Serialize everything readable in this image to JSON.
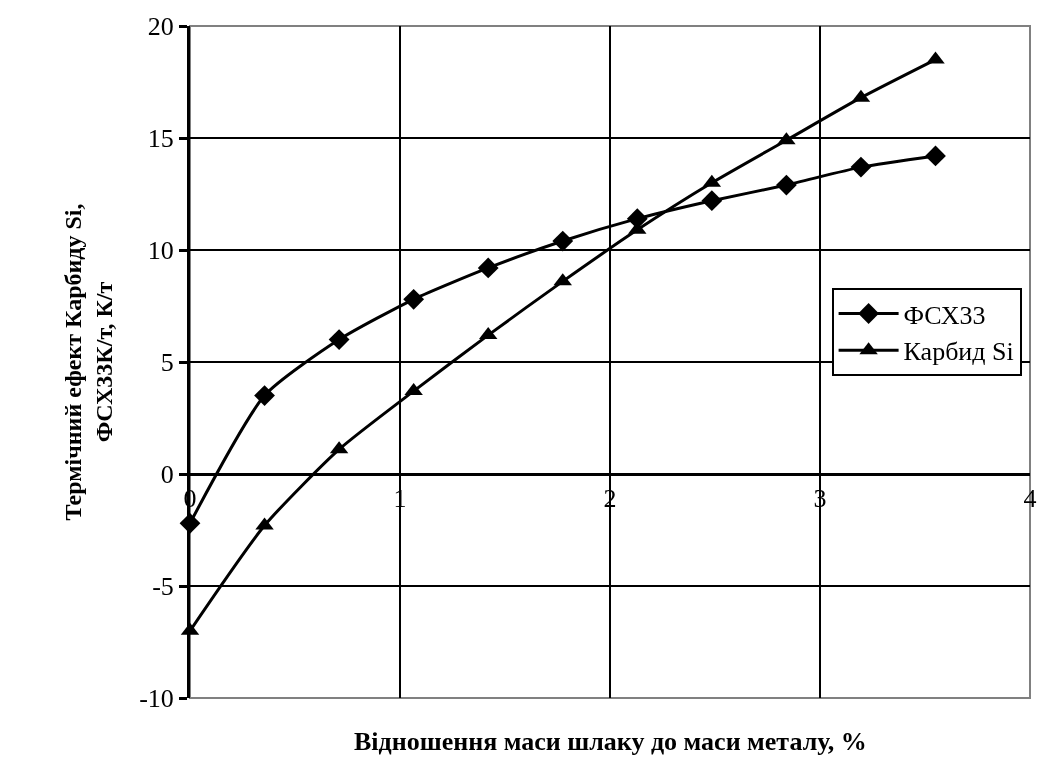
{
  "chart_data": {
    "type": "line",
    "xlabel": "Відношення маси шлаку до маси металу, %",
    "ylabel": "Термічний ефект Карбиду Si,\nФСХ33К/т, К/т",
    "x": [
      0,
      0.355,
      0.71,
      1.065,
      1.42,
      1.775,
      2.13,
      2.485,
      2.84,
      3.195,
      3.55
    ],
    "series": [
      {
        "name": "ФСХ33",
        "color": "#000000",
        "marker": "diamond",
        "values": [
          -2.2,
          3.5,
          6.0,
          7.8,
          9.2,
          10.4,
          11.4,
          12.2,
          12.9,
          13.7,
          14.2
        ]
      },
      {
        "name": "Карбид Si",
        "color": "#000000",
        "marker": "triangle",
        "values": [
          -7.0,
          -2.3,
          1.1,
          3.7,
          6.2,
          8.6,
          10.9,
          13.0,
          14.9,
          16.8,
          18.5
        ]
      }
    ],
    "xlim": [
      0,
      4
    ],
    "xticks": [
      0,
      1,
      2,
      3,
      4
    ],
    "ylim": [
      -10,
      20
    ],
    "yticks": [
      -10,
      -5,
      0,
      5,
      10,
      15,
      20
    ],
    "grid": true,
    "legend": "right",
    "line_style": "solid"
  }
}
